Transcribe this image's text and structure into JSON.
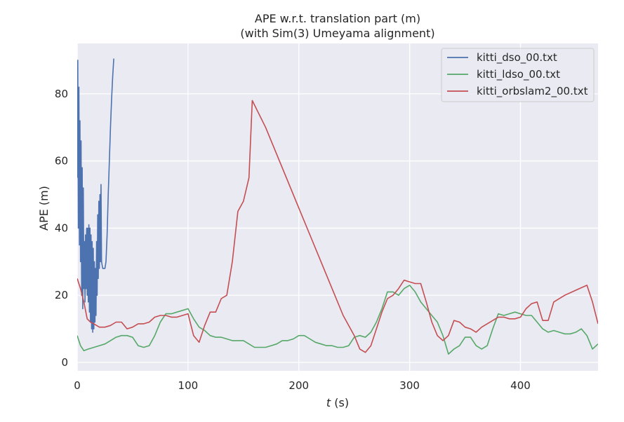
{
  "chart_data": {
    "type": "line",
    "title_line1": "APE w.r.t. translation part (m)",
    "title_line2": "(with Sim(3) Umeyama alignment)",
    "xlabel_var": "t",
    "xlabel_unit": " (s)",
    "ylabel": "APE (m)",
    "xlim": [
      0,
      470
    ],
    "ylim": [
      -2.5,
      95
    ],
    "xticks": [
      0,
      100,
      200,
      300,
      400
    ],
    "yticks": [
      0,
      20,
      40,
      60,
      80
    ],
    "grid": true,
    "legend_position": "top-right",
    "colors": {
      "background": "#eaeaf2",
      "grid": "#ffffff",
      "dso": "#4c72b0",
      "ldso": "#55a868",
      "orbslam2": "#c44e52"
    },
    "series": [
      {
        "name": "kitti_dso_00.txt",
        "x": [
          0,
          0.5,
          1.0,
          1.5,
          2.0,
          2.5,
          3.0,
          3.5,
          4.0,
          4.5,
          5.0,
          5.5,
          6.0,
          6.5,
          7.0,
          7.5,
          8.0,
          8.5,
          9.0,
          9.5,
          10.0,
          10.5,
          11.0,
          11.5,
          12.0,
          12.5,
          13.0,
          13.5,
          14.0,
          14.5,
          15.0,
          15.5,
          16.0,
          16.5,
          17.0,
          17.5,
          18.0,
          18.5,
          19.0,
          19.5,
          20.0,
          20.5,
          21.0,
          21.5,
          22.0,
          22.5,
          23.0,
          24.0,
          25.0,
          26.0,
          27.0,
          28.0,
          29.0,
          30.0,
          31.0,
          32.0,
          33.0
        ],
        "values": [
          55,
          90,
          40,
          82,
          35,
          72,
          30,
          66,
          20,
          58,
          16,
          52,
          22,
          36,
          18,
          38,
          22,
          40,
          20,
          40,
          18,
          41,
          15,
          40,
          12,
          38,
          10,
          36,
          9,
          34,
          10,
          30,
          12,
          28,
          14,
          36,
          20,
          44,
          25,
          48,
          28,
          50,
          30,
          53,
          30,
          29,
          28,
          28,
          28,
          30,
          38,
          50,
          60,
          70,
          78,
          85,
          90.5
        ]
      },
      {
        "name": "kitti_ldso_00.txt",
        "x": [
          0,
          3,
          6,
          10,
          15,
          20,
          25,
          30,
          35,
          40,
          45,
          50,
          55,
          60,
          65,
          70,
          75,
          80,
          85,
          90,
          95,
          100,
          105,
          110,
          115,
          120,
          125,
          130,
          135,
          140,
          145,
          150,
          155,
          160,
          165,
          170,
          175,
          180,
          185,
          190,
          195,
          200,
          205,
          210,
          215,
          220,
          225,
          230,
          235,
          240,
          245,
          250,
          255,
          260,
          265,
          270,
          275,
          280,
          285,
          290,
          295,
          300,
          305,
          310,
          315,
          320,
          325,
          330,
          335,
          340,
          345,
          350,
          355,
          360,
          365,
          370,
          375,
          380,
          385,
          390,
          395,
          400,
          405,
          410,
          415,
          420,
          425,
          430,
          435,
          440,
          445,
          450,
          455,
          460,
          465,
          470
        ],
        "values": [
          8,
          5,
          3.5,
          4,
          4.5,
          5,
          5.5,
          6.5,
          7.5,
          8,
          8,
          7.5,
          5,
          4.5,
          5,
          8,
          12,
          14.5,
          14.5,
          15,
          15.5,
          16,
          13,
          10.5,
          9.5,
          8,
          7.5,
          7.5,
          7,
          6.5,
          6.5,
          6.5,
          5.5,
          4.5,
          4.5,
          4.5,
          5,
          5.5,
          6.5,
          6.5,
          7,
          8,
          8,
          7,
          6,
          5.5,
          5,
          5,
          4.5,
          4.5,
          5,
          7.5,
          8,
          7.5,
          9,
          12,
          16,
          21,
          21,
          20,
          22,
          23,
          21,
          18,
          16,
          14,
          12,
          8,
          2.5,
          4,
          5,
          7.5,
          7.5,
          5,
          4,
          5,
          10,
          14.5,
          14,
          14.5,
          15,
          14.5,
          14,
          14,
          12,
          10,
          9,
          9.5,
          9,
          8.5,
          8.5,
          9,
          10,
          8,
          4,
          5.5
        ]
      },
      {
        "name": "kitti_orbslam2_00.txt",
        "x": [
          0,
          3,
          6,
          9,
          12,
          15,
          20,
          25,
          30,
          35,
          40,
          45,
          50,
          55,
          60,
          65,
          70,
          75,
          80,
          85,
          90,
          95,
          100,
          105,
          110,
          115,
          120,
          125,
          130,
          135,
          140,
          145,
          150,
          155,
          158,
          170,
          180,
          190,
          200,
          210,
          220,
          230,
          240,
          250,
          255,
          260,
          265,
          270,
          275,
          280,
          285,
          290,
          295,
          300,
          305,
          310,
          315,
          320,
          325,
          330,
          335,
          340,
          345,
          350,
          355,
          360,
          365,
          370,
          375,
          380,
          385,
          390,
          395,
          400,
          405,
          410,
          415,
          420,
          425,
          430,
          440,
          450,
          460,
          465,
          470
        ],
        "values": [
          25,
          22,
          18,
          13,
          12,
          11.5,
          10.5,
          10.5,
          11,
          12,
          12,
          10,
          10.5,
          11.5,
          11.5,
          12,
          13.5,
          14,
          14,
          13.5,
          13.5,
          14,
          14.5,
          8,
          6,
          11,
          15,
          15,
          19,
          20,
          30,
          45,
          48,
          55,
          78,
          70,
          62,
          54,
          46,
          38,
          30,
          22,
          14,
          8,
          4,
          3,
          5,
          10,
          15,
          19,
          20,
          22,
          24.5,
          24,
          23.5,
          23.5,
          18,
          12,
          8,
          6.5,
          8,
          12.5,
          12,
          10.5,
          10,
          9,
          10.5,
          11.5,
          12.5,
          13.5,
          13.5,
          13,
          13,
          13.5,
          16,
          17.5,
          18,
          12.5,
          12.5,
          18,
          20,
          21.5,
          23,
          18,
          11.5
        ]
      }
    ]
  }
}
